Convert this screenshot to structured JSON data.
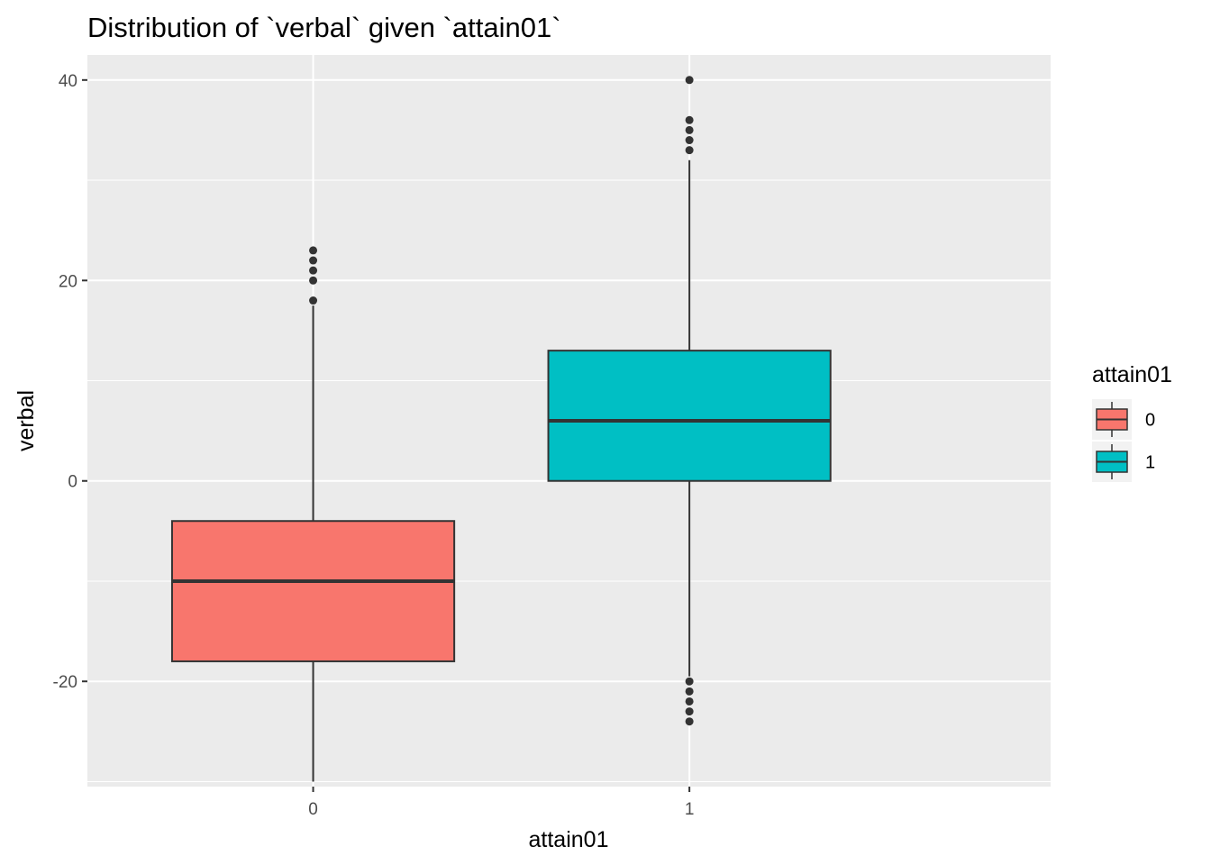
{
  "chart_data": {
    "type": "boxplot",
    "title": "Distribution of `verbal` given `attain01`",
    "xlabel": "attain01",
    "ylabel": "verbal",
    "categories": [
      "0",
      "1"
    ],
    "ylim": [
      -30.5,
      42.5
    ],
    "y_ticks": [
      -20,
      0,
      20,
      40
    ],
    "y_tick_labels": [
      "-20",
      "0",
      "20",
      "40"
    ],
    "grid": true,
    "legend": {
      "title": "attain01",
      "position": "right",
      "entries": [
        {
          "label": "0",
          "color": "#F8766D"
        },
        {
          "label": "1",
          "color": "#00BFC4"
        }
      ]
    },
    "series": [
      {
        "category": "0",
        "fill": "#F8766D",
        "whisker_low": -30,
        "q1": -18,
        "median": -10,
        "q3": -4,
        "whisker_high": 17.5,
        "outliers": [
          18,
          20,
          21,
          22,
          23
        ]
      },
      {
        "category": "1",
        "fill": "#00BFC4",
        "whisker_low": -19.5,
        "q1": 0,
        "median": 6,
        "q3": 13,
        "whisker_high": 32,
        "outliers": [
          -24,
          -23,
          -22,
          -21,
          -20,
          33,
          34,
          35,
          36,
          40
        ]
      }
    ]
  },
  "colors": {
    "panel_background": "#EBEBEB",
    "grid": "#FFFFFF",
    "box_stroke": "#333333"
  }
}
